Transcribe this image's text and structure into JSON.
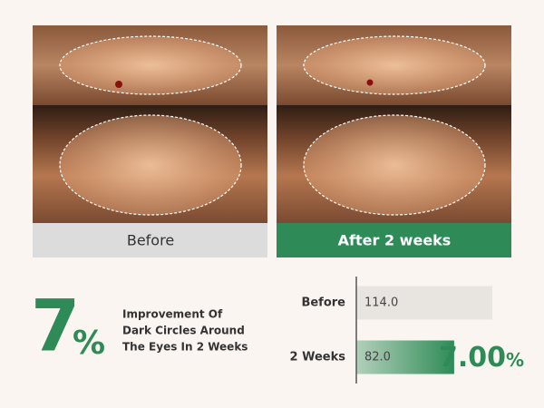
{
  "photos": {
    "before_label": "Before",
    "after_label": "After 2 weeks"
  },
  "stat": {
    "number": "7",
    "unit": "%",
    "description": [
      "Improvement Of",
      "Dark Circles Around",
      "The Eyes In 2 Weeks"
    ]
  },
  "chart_data": {
    "type": "bar",
    "orientation": "horizontal",
    "categories": [
      "Before",
      "2 Weeks"
    ],
    "values": [
      114.0,
      82.0
    ],
    "value_labels": [
      "114.0",
      "82.0"
    ],
    "colors": [
      "#e8e5e1",
      "#2e8b57"
    ],
    "result": {
      "number": "7.00",
      "unit": "%"
    }
  }
}
